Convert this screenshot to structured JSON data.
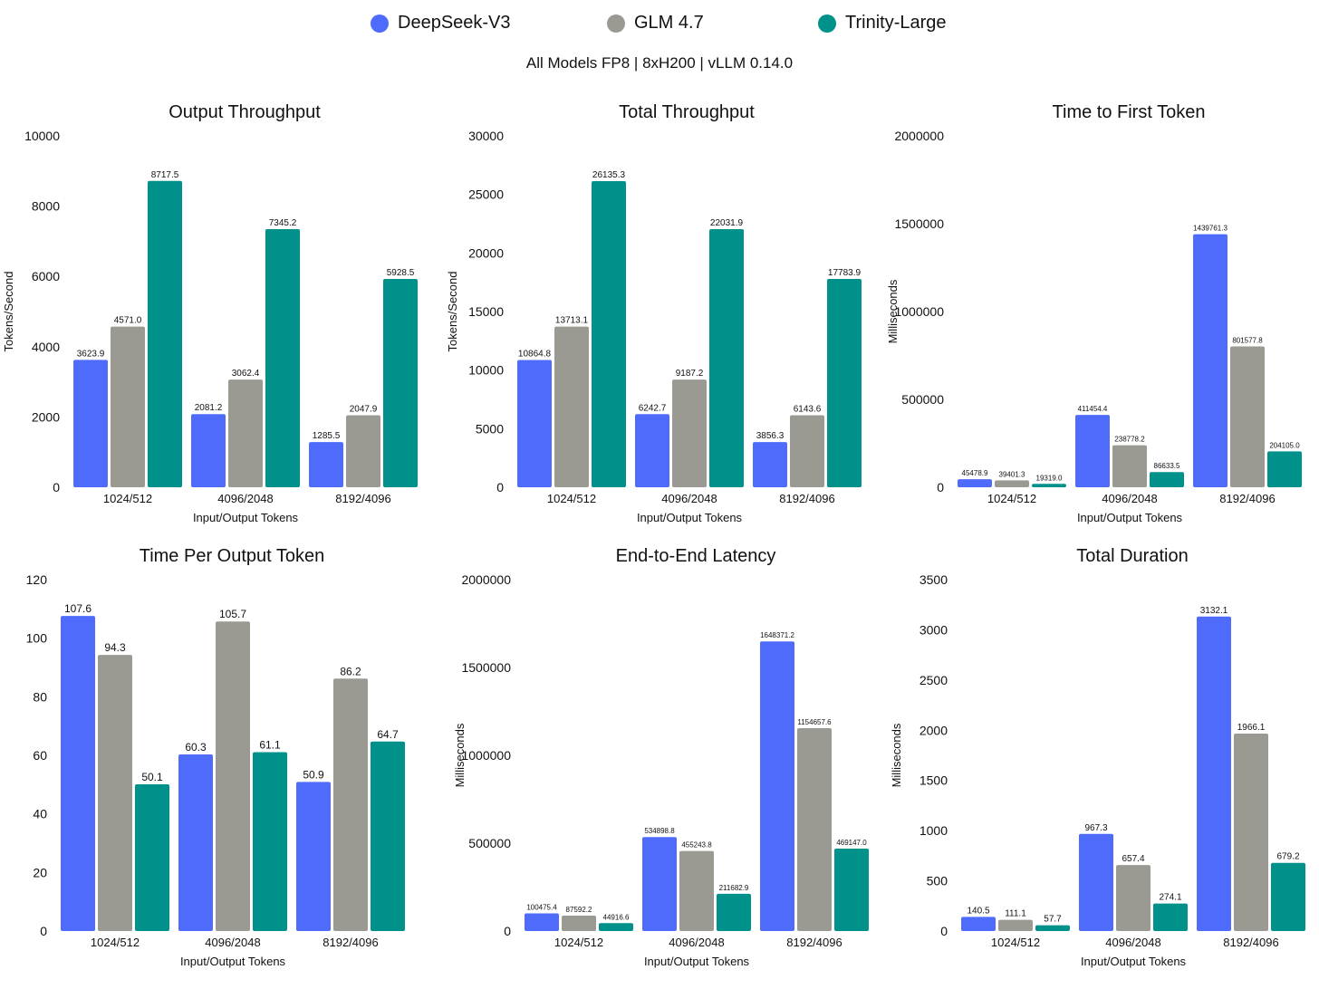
{
  "legend": {
    "items": [
      {
        "label": "DeepSeek-V3",
        "color": "#4f6bfb"
      },
      {
        "label": "GLM 4.7",
        "color": "#9a9a92"
      },
      {
        "label": "Trinity-Large",
        "color": "#00918a"
      }
    ]
  },
  "subtitle": "All Models FP8 | 8xH200 | vLLM 0.14.0",
  "chart_data": [
    {
      "type": "bar",
      "title": "Output Throughput",
      "xlabel": "Input/Output Tokens",
      "ylabel": "Tokens/Second",
      "categories": [
        "1024/512",
        "4096/2048",
        "8192/4096"
      ],
      "ylim": [
        0,
        10000
      ],
      "yticks": [
        0,
        2000,
        4000,
        6000,
        8000,
        10000
      ],
      "series": [
        {
          "name": "DeepSeek-V3",
          "values": [
            3623.9,
            2081.2,
            1285.5
          ],
          "labels": [
            "3623.9",
            "2081.2",
            "1285.5"
          ]
        },
        {
          "name": "GLM 4.7",
          "values": [
            4571.0,
            3062.4,
            2047.9
          ],
          "labels": [
            "4571.0",
            "3062.4",
            "2047.9"
          ]
        },
        {
          "name": "Trinity-Large",
          "values": [
            8717.5,
            7345.2,
            5928.5
          ],
          "labels": [
            "8717.5",
            "7345.2",
            "5928.5"
          ]
        }
      ],
      "grid": false
    },
    {
      "type": "bar",
      "title": "Total Throughput",
      "xlabel": "Input/Output Tokens",
      "ylabel": "Tokens/Second",
      "categories": [
        "1024/512",
        "4096/2048",
        "8192/4096"
      ],
      "ylim": [
        0,
        30000
      ],
      "yticks": [
        0,
        5000,
        10000,
        15000,
        20000,
        25000,
        30000
      ],
      "series": [
        {
          "name": "DeepSeek-V3",
          "values": [
            10864.8,
            6242.7,
            3856.3
          ],
          "labels": [
            "10864.8",
            "6242.7",
            "3856.3"
          ]
        },
        {
          "name": "GLM 4.7",
          "values": [
            13713.1,
            9187.2,
            6143.6
          ],
          "labels": [
            "13713.1",
            "9187.2",
            "6143.6"
          ]
        },
        {
          "name": "Trinity-Large",
          "values": [
            26135.3,
            22031.9,
            17783.9
          ],
          "labels": [
            "26135.3",
            "22031.9",
            "17783.9"
          ]
        }
      ],
      "grid": false
    },
    {
      "type": "bar",
      "title": "Time to First Token",
      "xlabel": "Input/Output Tokens",
      "ylabel": "Milliseconds",
      "categories": [
        "1024/512",
        "4096/2048",
        "8192/4096"
      ],
      "ylim": [
        0,
        2000000
      ],
      "yticks": [
        0,
        500000,
        1000000,
        1500000,
        2000000
      ],
      "series": [
        {
          "name": "DeepSeek-V3",
          "values": [
            45478.9,
            411454.4,
            1439761.3
          ],
          "labels": [
            "45478.9",
            "411454.4",
            "1439761.3"
          ]
        },
        {
          "name": "GLM 4.7",
          "values": [
            39401.3,
            238778.2,
            801577.8
          ],
          "labels": [
            "39401.3",
            "238778.2",
            "801577.8"
          ]
        },
        {
          "name": "Trinity-Large",
          "values": [
            19319.0,
            86633.5,
            204105.0
          ],
          "labels": [
            "19319.0",
            "86633.5",
            "204105.0"
          ]
        }
      ],
      "grid": false
    },
    {
      "type": "bar",
      "title": "Time Per Output Token",
      "xlabel": "Input/Output Tokens",
      "ylabel": "Milliseconds",
      "categories": [
        "1024/512",
        "4096/2048",
        "8192/4096"
      ],
      "ylim": [
        0,
        120
      ],
      "yticks": [
        0,
        20,
        40,
        60,
        80,
        100,
        120
      ],
      "series": [
        {
          "name": "DeepSeek-V3",
          "values": [
            107.6,
            60.3,
            50.9
          ],
          "labels": [
            "107.6",
            "60.3",
            "50.9"
          ]
        },
        {
          "name": "GLM 4.7",
          "values": [
            94.3,
            105.7,
            86.2
          ],
          "labels": [
            "94.3",
            "105.7",
            "86.2"
          ]
        },
        {
          "name": "Trinity-Large",
          "values": [
            50.1,
            61.1,
            64.7
          ],
          "labels": [
            "50.1",
            "61.1",
            "64.7"
          ]
        }
      ],
      "grid": false
    },
    {
      "type": "bar",
      "title": "End-to-End Latency",
      "xlabel": "Input/Output Tokens",
      "ylabel": "Milliseconds",
      "categories": [
        "1024/512",
        "4096/2048",
        "8192/4096"
      ],
      "ylim": [
        0,
        2000000
      ],
      "yticks": [
        0,
        500000,
        1000000,
        1500000,
        2000000
      ],
      "series": [
        {
          "name": "DeepSeek-V3",
          "values": [
            100475.4,
            534898.8,
            1648371.2
          ],
          "labels": [
            "100475.4",
            "534898.8",
            "1648371.2"
          ]
        },
        {
          "name": "GLM 4.7",
          "values": [
            87592.2,
            455243.8,
            1154657.6
          ],
          "labels": [
            "87592.2",
            "455243.8",
            "1154657.6"
          ]
        },
        {
          "name": "Trinity-Large",
          "values": [
            44916.6,
            211682.9,
            469147.0
          ],
          "labels": [
            "44916.6",
            "211682.9",
            "469147.0"
          ]
        }
      ],
      "grid": false
    },
    {
      "type": "bar",
      "title": "Total Duration",
      "xlabel": "Input/Output Tokens",
      "ylabel": "Milliseconds",
      "categories": [
        "1024/512",
        "4096/2048",
        "8192/4096"
      ],
      "ylim": [
        0,
        3500
      ],
      "yticks": [
        0,
        500,
        1000,
        1500,
        2000,
        2500,
        3000,
        3500
      ],
      "series": [
        {
          "name": "DeepSeek-V3",
          "values": [
            140.5,
            967.3,
            3132.1
          ],
          "labels": [
            "140.5",
            "967.3",
            "3132.1"
          ]
        },
        {
          "name": "GLM 4.7",
          "values": [
            111.1,
            657.4,
            1966.1
          ],
          "labels": [
            "111.1",
            "657.4",
            "1966.1"
          ]
        },
        {
          "name": "Trinity-Large",
          "values": [
            57.7,
            274.1,
            679.2
          ],
          "labels": [
            "57.7",
            "274.1",
            "679.2"
          ]
        }
      ],
      "grid": false
    }
  ]
}
